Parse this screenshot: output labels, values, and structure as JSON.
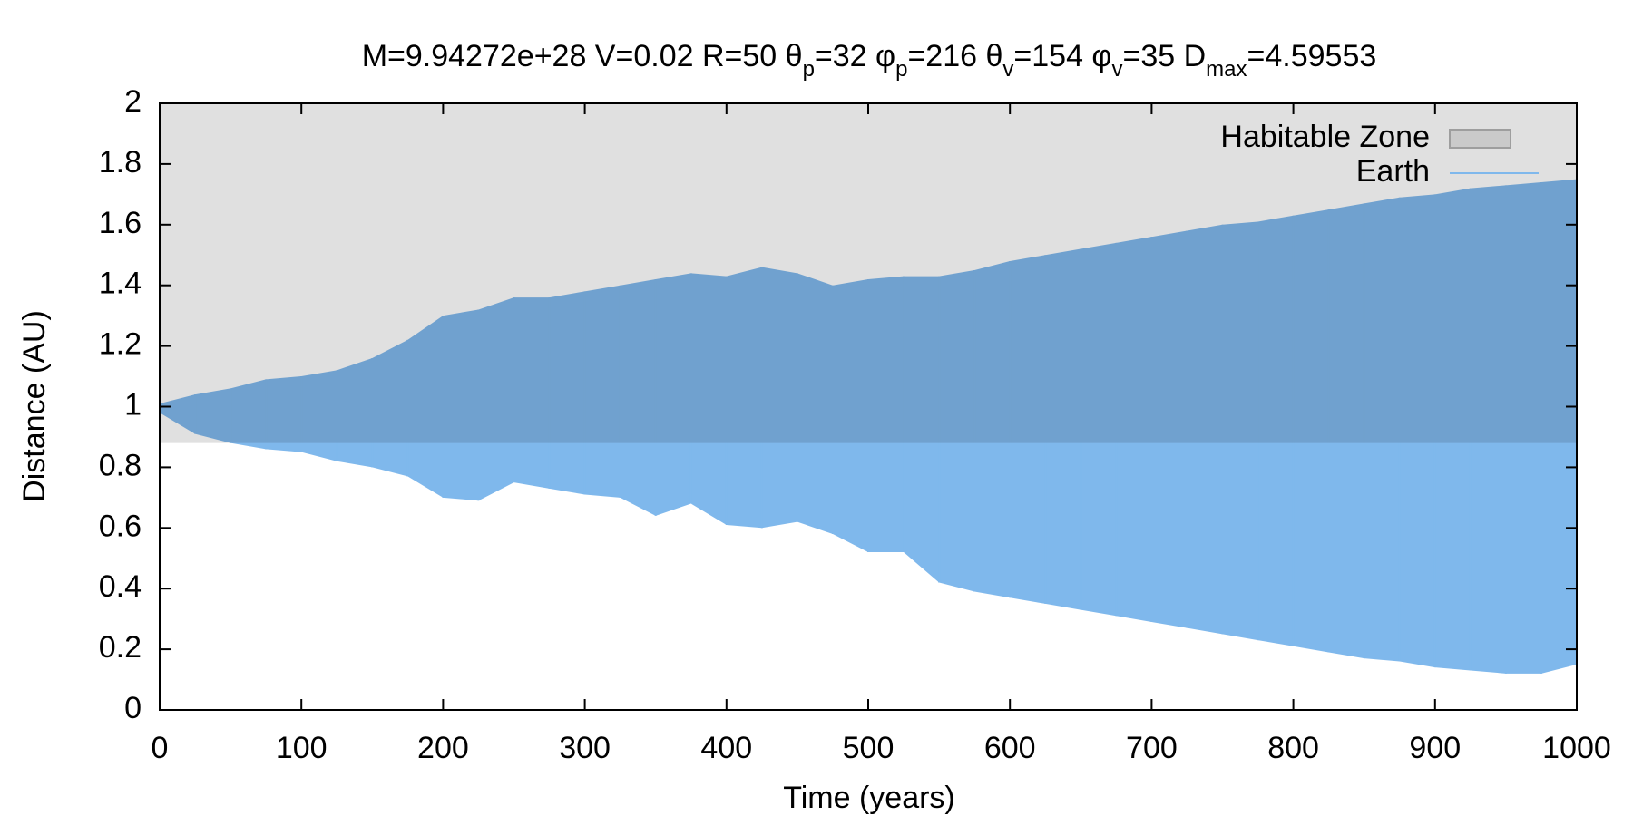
{
  "chart_data": {
    "type": "range-area",
    "title": [
      {
        "text": "M=9.94272e+28 V=0.02 R=50 θ"
      },
      {
        "text": "p",
        "sub": true
      },
      {
        "text": "=32 φ"
      },
      {
        "text": "p",
        "sub": true
      },
      {
        "text": "=216 θ"
      },
      {
        "text": "v",
        "sub": true
      },
      {
        "text": "=154 φ"
      },
      {
        "text": "v",
        "sub": true
      },
      {
        "text": "=35 D"
      },
      {
        "text": "max",
        "sub": true
      },
      {
        "text": "=4.59553"
      }
    ],
    "x_label": "Time (years)",
    "y_label": "Distance (AU)",
    "x": [
      0,
      25,
      50,
      75,
      100,
      125,
      150,
      175,
      200,
      225,
      250,
      275,
      300,
      325,
      350,
      375,
      400,
      425,
      450,
      475,
      500,
      525,
      550,
      575,
      600,
      625,
      650,
      675,
      700,
      725,
      750,
      775,
      800,
      825,
      850,
      875,
      900,
      925,
      950,
      975,
      1000
    ],
    "zones": [
      {
        "name": "Habitable Zone",
        "color": "#e0e0e0",
        "range": [
          0.88,
          2
        ]
      }
    ],
    "series": [
      {
        "name": "Earth",
        "color": "#7fb8ec",
        "high": [
          1.01,
          1.04,
          1.06,
          1.09,
          1.1,
          1.12,
          1.16,
          1.22,
          1.3,
          1.32,
          1.36,
          1.36,
          1.38,
          1.4,
          1.42,
          1.44,
          1.43,
          1.46,
          1.44,
          1.4,
          1.42,
          1.43,
          1.43,
          1.45,
          1.48,
          1.5,
          1.52,
          1.54,
          1.56,
          1.58,
          1.6,
          1.61,
          1.63,
          1.65,
          1.67,
          1.69,
          1.7,
          1.72,
          1.73,
          1.74,
          1.75
        ],
        "low": [
          0.98,
          0.91,
          0.88,
          0.86,
          0.85,
          0.82,
          0.8,
          0.77,
          0.7,
          0.69,
          0.75,
          0.73,
          0.71,
          0.7,
          0.64,
          0.68,
          0.61,
          0.6,
          0.62,
          0.58,
          0.52,
          0.52,
          0.42,
          0.39,
          0.37,
          0.35,
          0.33,
          0.31,
          0.29,
          0.27,
          0.25,
          0.23,
          0.21,
          0.19,
          0.17,
          0.16,
          0.14,
          0.13,
          0.12,
          0.12,
          0.15
        ]
      }
    ],
    "xlim": [
      0,
      1000
    ],
    "xticks": [
      0,
      100,
      200,
      300,
      400,
      500,
      600,
      700,
      800,
      900,
      1000
    ],
    "ylim": [
      0,
      2
    ],
    "yticks": [
      0,
      0.2,
      0.4,
      0.6,
      0.8,
      1,
      1.2,
      1.4,
      1.6,
      1.8,
      2
    ],
    "legend": "top-right"
  }
}
